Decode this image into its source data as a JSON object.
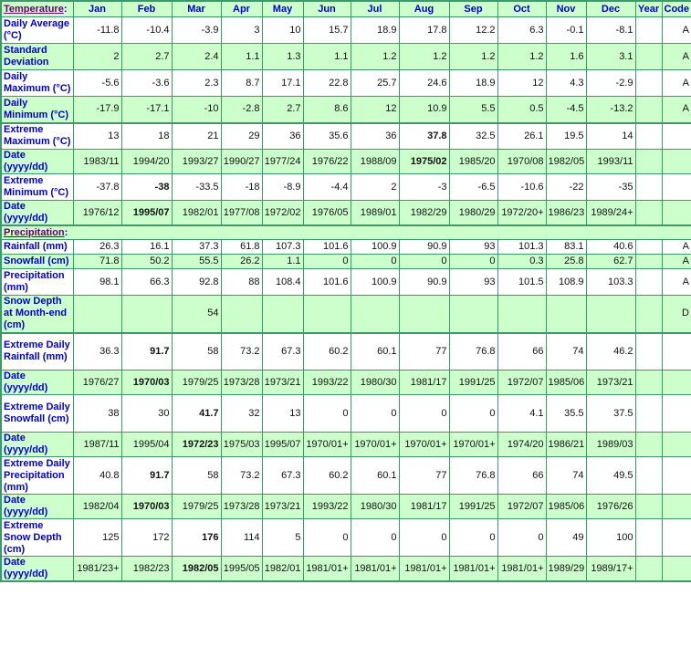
{
  "header": {
    "section_temperature": "Temperature",
    "colon": ":",
    "columns": [
      "Jan",
      "Feb",
      "Mar",
      "Apr",
      "May",
      "Jun",
      "Jul",
      "Aug",
      "Sep",
      "Oct",
      "Nov",
      "Dec",
      "Year",
      "Code"
    ]
  },
  "colors": {
    "header_bg": "#ccffcc",
    "border": "#3c9a6a",
    "label": "#0000cc",
    "section_link": "#660066"
  },
  "temperature_rows": [
    {
      "label": "Daily Average (°C)",
      "values": [
        "-11.8",
        "-10.4",
        "-3.9",
        "3",
        "10",
        "15.7",
        "18.9",
        "17.8",
        "12.2",
        "6.3",
        "-0.1",
        "-8.1",
        "",
        "A"
      ],
      "bold": []
    },
    {
      "label": "Standard Deviation",
      "values": [
        "2",
        "2.7",
        "2.4",
        "1.1",
        "1.3",
        "1.1",
        "1.2",
        "1.2",
        "1.2",
        "1.2",
        "1.6",
        "3.1",
        "",
        "A"
      ],
      "bold": []
    },
    {
      "label": "Daily Maximum (°C)",
      "values": [
        "-5.6",
        "-3.6",
        "2.3",
        "8.7",
        "17.1",
        "22.8",
        "25.7",
        "24.6",
        "18.9",
        "12",
        "4.3",
        "-2.9",
        "",
        "A"
      ],
      "bold": []
    },
    {
      "label": "Daily Minimum (°C)",
      "values": [
        "-17.9",
        "-17.1",
        "-10",
        "-2.8",
        "2.7",
        "8.6",
        "12",
        "10.9",
        "5.5",
        "0.5",
        "-4.5",
        "-13.2",
        "",
        "A"
      ],
      "bold": []
    },
    {
      "label": "Extreme Maximum (°C)",
      "values": [
        "13",
        "18",
        "21",
        "29",
        "36",
        "35.6",
        "36",
        "37.8",
        "32.5",
        "26.1",
        "19.5",
        "14",
        "",
        ""
      ],
      "bold": [
        7
      ]
    },
    {
      "label": "Date (yyyy/dd)",
      "values": [
        "1983/11",
        "1994/20",
        "1993/27",
        "1990/27",
        "1977/24",
        "1976/22",
        "1988/09",
        "1975/02",
        "1985/20",
        "1970/08",
        "1982/05",
        "1993/11",
        "",
        ""
      ],
      "bold": [
        7
      ]
    },
    {
      "label": "Extreme Minimum (°C)",
      "values": [
        "-37.8",
        "-38",
        "-33.5",
        "-18",
        "-8.9",
        "-4.4",
        "2",
        "-3",
        "-6.5",
        "-10.6",
        "-22",
        "-35",
        "",
        ""
      ],
      "bold": [
        1
      ]
    },
    {
      "label": "Date (yyyy/dd)",
      "values": [
        "1976/12",
        "1995/07",
        "1982/01",
        "1977/08",
        "1972/02",
        "1976/05",
        "1989/01",
        "1982/29",
        "1980/29",
        "1972/20+",
        "1986/23",
        "1989/24+",
        "",
        ""
      ],
      "bold": [
        1
      ]
    }
  ],
  "precipitation": {
    "section_title": "Precipitation",
    "colon": ":",
    "rows": [
      {
        "label": "Rainfall (mm)",
        "values": [
          "26.3",
          "16.1",
          "37.3",
          "61.8",
          "107.3",
          "101.6",
          "100.9",
          "90.9",
          "93",
          "101.3",
          "83.1",
          "40.6",
          "",
          "A"
        ],
        "bold": []
      },
      {
        "label": "Snowfall (cm)",
        "values": [
          "71.8",
          "50.2",
          "55.5",
          "26.2",
          "1.1",
          "0",
          "0",
          "0",
          "0",
          "0.3",
          "25.8",
          "62.7",
          "",
          "A"
        ],
        "bold": []
      },
      {
        "label": "Precipitation (mm)",
        "values": [
          "98.1",
          "66.3",
          "92.8",
          "88",
          "108.4",
          "101.6",
          "100.9",
          "90.9",
          "93",
          "101.5",
          "108.9",
          "103.3",
          "",
          "A"
        ],
        "bold": []
      },
      {
        "label": "Snow Depth at Month-end (cm)",
        "values": [
          "",
          "",
          "54",
          "",
          "",
          "",
          "",
          "",
          "",
          "",
          "",
          "",
          "",
          "D"
        ],
        "bold": []
      },
      {
        "label": "Extreme Daily Rainfall (mm)",
        "values": [
          "36.3",
          "91.7",
          "58",
          "73.2",
          "67.3",
          "60.2",
          "60.1",
          "77",
          "76.8",
          "66",
          "74",
          "46.2",
          "",
          ""
        ],
        "bold": [
          1
        ]
      },
      {
        "label": "Date (yyyy/dd)",
        "values": [
          "1976/27",
          "1970/03",
          "1979/25",
          "1973/28",
          "1973/21",
          "1993/22",
          "1980/30",
          "1981/17",
          "1991/25",
          "1972/07",
          "1985/06",
          "1973/21",
          "",
          ""
        ],
        "bold": [
          1
        ]
      },
      {
        "label": "Extreme Daily Snowfall (cm)",
        "values": [
          "38",
          "30",
          "41.7",
          "32",
          "13",
          "0",
          "0",
          "0",
          "0",
          "4.1",
          "35.5",
          "37.5",
          "",
          ""
        ],
        "bold": [
          2
        ]
      },
      {
        "label": "Date (yyyy/dd)",
        "values": [
          "1987/11",
          "1995/04",
          "1972/23",
          "1975/03",
          "1995/07",
          "1970/01+",
          "1970/01+",
          "1970/01+",
          "1970/01+",
          "1974/20",
          "1986/21",
          "1989/03",
          "",
          ""
        ],
        "bold": [
          2
        ]
      },
      {
        "label": "Extreme Daily Precipitation (mm)",
        "values": [
          "40.8",
          "91.7",
          "58",
          "73.2",
          "67.3",
          "60.2",
          "60.1",
          "77",
          "76.8",
          "66",
          "74",
          "49.5",
          "",
          ""
        ],
        "bold": [
          1
        ]
      },
      {
        "label": "Date (yyyy/dd)",
        "values": [
          "1982/04",
          "1970/03",
          "1979/25",
          "1973/28",
          "1973/21",
          "1993/22",
          "1980/30",
          "1981/17",
          "1991/25",
          "1972/07",
          "1985/06",
          "1976/26",
          "",
          ""
        ],
        "bold": [
          1
        ]
      },
      {
        "label": "Extreme Snow Depth (cm)",
        "values": [
          "125",
          "172",
          "176",
          "114",
          "5",
          "0",
          "0",
          "0",
          "0",
          "0",
          "49",
          "100",
          "",
          ""
        ],
        "bold": [
          2
        ]
      },
      {
        "label": "Date (yyyy/dd)",
        "values": [
          "1981/23+",
          "1982/23",
          "1982/05",
          "1995/05",
          "1982/01",
          "1981/01+",
          "1981/01+",
          "1981/01+",
          "1981/01+",
          "1981/01+",
          "1989/29",
          "1989/17+",
          "",
          ""
        ],
        "bold": [
          2
        ]
      }
    ]
  }
}
